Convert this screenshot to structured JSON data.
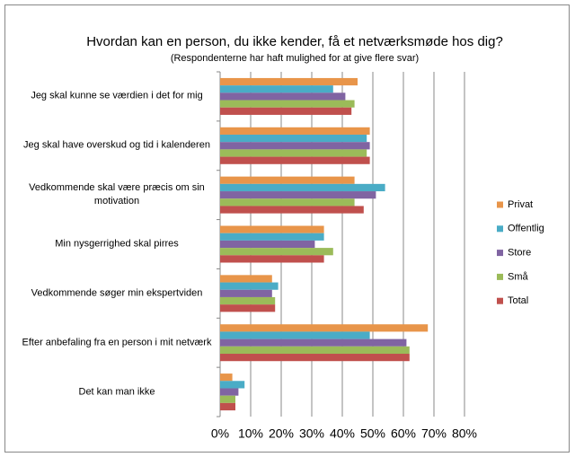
{
  "chart_data": {
    "type": "hbar",
    "title": "Hvordan kan en person, du ikke kender, få et netværksmøde hos dig?",
    "subtitle": "(Respondenterne har haft mulighed for at give flere svar)",
    "categories": [
      "Jeg skal kunne se værdien i det for mig",
      "Jeg skal have overskud og tid i kalenderen",
      "Vedkommende skal være præcis om sin motivation",
      "Min nysgerrighed skal pirres",
      "Vedkommende søger min ekspertviden",
      "Efter anbefaling fra en person i mit netværk",
      "Det kan man ikke"
    ],
    "series": [
      {
        "name": "Privat",
        "color": "#e8954a",
        "values": [
          45,
          49,
          44,
          34,
          17,
          68,
          4
        ]
      },
      {
        "name": "Offentlig",
        "color": "#4aacc6",
        "values": [
          37,
          48,
          54,
          34,
          19,
          49,
          8
        ]
      },
      {
        "name": "Store",
        "color": "#8064a2",
        "values": [
          41,
          49,
          51,
          31,
          17,
          61,
          6
        ]
      },
      {
        "name": "Små",
        "color": "#9bbb59",
        "values": [
          44,
          48,
          44,
          37,
          18,
          62,
          5
        ]
      },
      {
        "name": "Total",
        "color": "#c0504d",
        "values": [
          43,
          49,
          47,
          34,
          18,
          62,
          5
        ]
      }
    ],
    "xlim": [
      0,
      80
    ],
    "xticks": [
      {
        "value": 0,
        "label": "0%"
      },
      {
        "value": 10,
        "label": "10%"
      },
      {
        "value": 20,
        "label": "20%"
      },
      {
        "value": 30,
        "label": "30%"
      },
      {
        "value": 40,
        "label": "40%"
      },
      {
        "value": 50,
        "label": "50%"
      },
      {
        "value": 60,
        "label": "60%"
      },
      {
        "value": 70,
        "label": "70%"
      },
      {
        "value": 80,
        "label": "80%"
      }
    ],
    "grid": true,
    "legend": "right"
  }
}
